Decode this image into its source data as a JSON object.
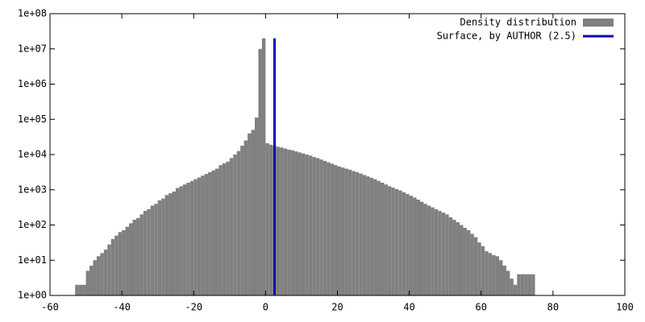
{
  "chart_data": {
    "type": "histogram",
    "bins": [
      -53,
      -52,
      -51,
      -50,
      -49,
      -48,
      -47,
      -46,
      -45,
      -44,
      -43,
      -42,
      -41,
      -40,
      -39,
      -38,
      -37,
      -36,
      -35,
      -34,
      -33,
      -32,
      -31,
      -30,
      -29,
      -28,
      -27,
      -26,
      -25,
      -24,
      -23,
      -22,
      -21,
      -20,
      -19,
      -18,
      -17,
      -16,
      -15,
      -14,
      -13,
      -12,
      -11,
      -10,
      -9,
      -8,
      -7,
      -6,
      -5,
      -4,
      -3,
      -2,
      -1,
      0,
      1,
      2,
      3,
      4,
      5,
      6,
      7,
      8,
      9,
      10,
      11,
      12,
      13,
      14,
      15,
      16,
      17,
      18,
      19,
      20,
      21,
      22,
      23,
      24,
      25,
      26,
      27,
      28,
      29,
      30,
      31,
      32,
      33,
      34,
      35,
      36,
      37,
      38,
      39,
      40,
      41,
      42,
      43,
      44,
      45,
      46,
      47,
      48,
      49,
      50,
      51,
      52,
      53,
      54,
      55,
      56,
      57,
      58,
      59,
      60,
      61,
      62,
      63,
      64,
      65,
      66,
      67,
      68,
      69,
      70,
      71,
      72,
      73,
      74,
      75
    ],
    "series": [
      {
        "name": "Density distribution",
        "color": "#808080",
        "values": [
          2,
          2,
          2,
          5,
          7,
          10,
          13,
          16,
          20,
          28,
          40,
          50,
          63,
          71,
          89,
          112,
          141,
          158,
          200,
          251,
          282,
          355,
          398,
          501,
          562,
          708,
          794,
          891,
          1122,
          1259,
          1413,
          1585,
          1778,
          1995,
          2239,
          2512,
          2818,
          3162,
          3548,
          3981,
          5012,
          5623,
          6310,
          7943,
          10000,
          12589,
          17783,
          25119,
          39811,
          50119,
          112202,
          10000000,
          20000000,
          20893,
          19055,
          17783,
          16596,
          15849,
          14791,
          13804,
          13183,
          12303,
          11482,
          10715,
          10000,
          9333,
          8511,
          7943,
          7244,
          6607,
          6026,
          5495,
          5012,
          4571,
          4266,
          3981,
          3715,
          3388,
          3162,
          2884,
          2630,
          2399,
          2188,
          1995,
          1778,
          1585,
          1413,
          1259,
          1148,
          1047,
          955,
          851,
          759,
          676,
          603,
          525,
          457,
          398,
          355,
          316,
          282,
          251,
          224,
          200,
          166,
          141,
          120,
          100,
          83,
          71,
          56,
          45,
          32,
          25,
          18,
          16,
          14,
          13,
          10,
          7,
          5,
          3,
          2,
          4,
          4,
          4,
          4,
          4
        ]
      },
      {
        "name": "Surface, by AUTHOR (2.5)",
        "color": "#0000c0",
        "x": [
          2.5,
          2.5
        ],
        "values": [
          1,
          20000000
        ]
      }
    ],
    "xlim": [
      -60,
      100
    ],
    "xticks": [
      -60,
      -40,
      -20,
      0,
      20,
      40,
      60,
      80,
      100
    ],
    "ylim": [
      1,
      100000000
    ],
    "log_y": true,
    "yticks": [
      {
        "value": 1,
        "label": "1e+00"
      },
      {
        "value": 10,
        "label": "1e+01"
      },
      {
        "value": 100,
        "label": "1e+02"
      },
      {
        "value": 1000,
        "label": "1e+03"
      },
      {
        "value": 10000,
        "label": "1e+04"
      },
      {
        "value": 100000,
        "label": "1e+05"
      },
      {
        "value": 1000000,
        "label": "1e+06"
      },
      {
        "value": 10000000,
        "label": "1e+07"
      },
      {
        "value": 100000000,
        "label": "1e+08"
      }
    ],
    "legend": "top-right"
  }
}
